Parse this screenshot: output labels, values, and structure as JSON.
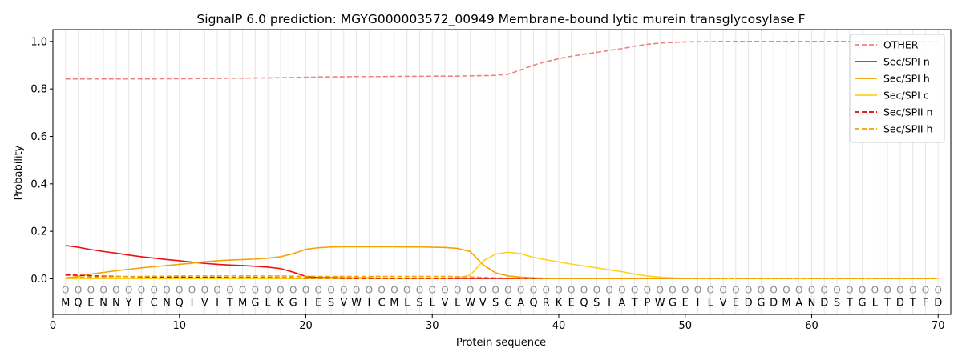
{
  "chart_data": {
    "type": "line",
    "title": "SignalP 6.0 prediction: MGYG000003572_00949 Membrane-bound lytic murein transglycosylase F",
    "xlabel": "Protein sequence",
    "ylabel": "Probability",
    "xlim": [
      0,
      71
    ],
    "ylim": [
      -0.15,
      1.05
    ],
    "xticks": [
      0,
      10,
      20,
      30,
      40,
      50,
      60,
      70
    ],
    "yticks": [
      0.0,
      0.2,
      0.4,
      0.6,
      0.8,
      1.0
    ],
    "xtick_labels": [
      "0",
      "10",
      "20",
      "30",
      "40",
      "50",
      "60",
      "70"
    ],
    "ytick_labels": [
      "0.0",
      "0.2",
      "0.4",
      "0.6",
      "0.8",
      "1.0"
    ],
    "legend_position": "top-right",
    "residues": [
      "M",
      "Q",
      "E",
      "N",
      "N",
      "Y",
      "F",
      "C",
      "N",
      "Q",
      "I",
      "V",
      "I",
      "T",
      "M",
      "G",
      "L",
      "K",
      "G",
      "I",
      "E",
      "S",
      "V",
      "W",
      "I",
      "C",
      "M",
      "L",
      "S",
      "L",
      "V",
      "L",
      "W",
      "V",
      "S",
      "C",
      "A",
      "Q",
      "R",
      "K",
      "E",
      "Q",
      "S",
      "I",
      "A",
      "T",
      "P",
      "W",
      "G",
      "E",
      "I",
      "L",
      "V",
      "E",
      "D",
      "G",
      "D",
      "M",
      "A",
      "N",
      "D",
      "S",
      "T",
      "G",
      "L",
      "T",
      "D",
      "T",
      "F",
      "D"
    ],
    "position_marker": "O",
    "x": [
      1,
      2,
      3,
      4,
      5,
      6,
      7,
      8,
      9,
      10,
      11,
      12,
      13,
      14,
      15,
      16,
      17,
      18,
      19,
      20,
      21,
      22,
      23,
      24,
      25,
      26,
      27,
      28,
      29,
      30,
      31,
      32,
      33,
      34,
      35,
      36,
      37,
      38,
      39,
      40,
      41,
      42,
      43,
      44,
      45,
      46,
      47,
      48,
      49,
      50,
      51,
      52,
      53,
      54,
      55,
      56,
      57,
      58,
      59,
      60,
      61,
      62,
      63,
      64,
      65,
      66,
      67,
      68,
      69,
      70
    ],
    "series": [
      {
        "name": "OTHER",
        "color": "#f08080",
        "dash": true,
        "values": [
          0.842,
          0.842,
          0.842,
          0.842,
          0.842,
          0.842,
          0.842,
          0.842,
          0.843,
          0.843,
          0.843,
          0.844,
          0.844,
          0.845,
          0.845,
          0.846,
          0.846,
          0.847,
          0.848,
          0.849,
          0.85,
          0.851,
          0.851,
          0.852,
          0.852,
          0.852,
          0.853,
          0.853,
          0.853,
          0.854,
          0.854,
          0.854,
          0.855,
          0.856,
          0.857,
          0.862,
          0.88,
          0.9,
          0.915,
          0.927,
          0.938,
          0.946,
          0.954,
          0.962,
          0.97,
          0.98,
          0.988,
          0.993,
          0.996,
          0.998,
          0.999,
          0.999,
          1.0,
          1.0,
          1.0,
          1.0,
          1.0,
          1.0,
          1.0,
          1.0,
          1.0,
          1.0,
          1.0,
          1.0,
          1.0,
          1.0,
          1.0,
          1.0,
          1.0,
          1.0
        ]
      },
      {
        "name": "Sec/SPI n",
        "color": "#ee1111",
        "dash": false,
        "values": [
          0.14,
          0.133,
          0.123,
          0.115,
          0.108,
          0.1,
          0.093,
          0.087,
          0.081,
          0.076,
          0.07,
          0.065,
          0.061,
          0.058,
          0.056,
          0.053,
          0.049,
          0.043,
          0.028,
          0.01,
          0.005,
          0.004,
          0.003,
          0.003,
          0.003,
          0.002,
          0.002,
          0.002,
          0.002,
          0.002,
          0.002,
          0.002,
          0.002,
          0.002,
          0.002,
          0.002,
          0.001,
          0.001,
          0.001,
          0.001,
          0.001,
          0.001,
          0.001,
          0.001,
          0.001,
          0.001,
          0.001,
          0.001,
          0.001,
          0.001,
          0.001,
          0.001,
          0.001,
          0.001,
          0.001,
          0.001,
          0.001,
          0.001,
          0.001,
          0.001,
          0.001,
          0.001,
          0.001,
          0.001,
          0.001,
          0.001,
          0.001,
          0.001,
          0.001,
          0.001
        ]
      },
      {
        "name": "Sec/SPI h",
        "color": "#f5a300",
        "dash": false,
        "values": [
          0.003,
          0.01,
          0.02,
          0.027,
          0.034,
          0.04,
          0.046,
          0.051,
          0.056,
          0.061,
          0.066,
          0.072,
          0.076,
          0.079,
          0.081,
          0.083,
          0.087,
          0.093,
          0.106,
          0.124,
          0.131,
          0.134,
          0.135,
          0.135,
          0.135,
          0.135,
          0.135,
          0.134,
          0.134,
          0.133,
          0.132,
          0.128,
          0.115,
          0.06,
          0.025,
          0.012,
          0.007,
          0.004,
          0.002,
          0.001,
          0.001,
          0.001,
          0.001,
          0.001,
          0.001,
          0.001,
          0.001,
          0.001,
          0.001,
          0.001,
          0.001,
          0.001,
          0.001,
          0.001,
          0.001,
          0.001,
          0.001,
          0.001,
          0.001,
          0.001,
          0.001,
          0.001,
          0.001,
          0.001,
          0.001,
          0.001,
          0.001,
          0.001,
          0.001,
          0.001
        ]
      },
      {
        "name": "Sec/SPI c",
        "color": "#ffd21f",
        "dash": false,
        "values": [
          0.001,
          0.001,
          0.001,
          0.001,
          0.001,
          0.001,
          0.001,
          0.001,
          0.001,
          0.001,
          0.001,
          0.001,
          0.001,
          0.001,
          0.001,
          0.001,
          0.001,
          0.001,
          0.001,
          0.001,
          0.001,
          0.001,
          0.001,
          0.001,
          0.001,
          0.001,
          0.001,
          0.001,
          0.001,
          0.001,
          0.002,
          0.004,
          0.015,
          0.075,
          0.104,
          0.112,
          0.106,
          0.09,
          0.08,
          0.071,
          0.062,
          0.054,
          0.046,
          0.038,
          0.03,
          0.02,
          0.012,
          0.007,
          0.004,
          0.002,
          0.001,
          0.001,
          0.001,
          0.001,
          0.001,
          0.001,
          0.001,
          0.001,
          0.001,
          0.001,
          0.001,
          0.001,
          0.001,
          0.001,
          0.001,
          0.001,
          0.001,
          0.001,
          0.001,
          0.001
        ]
      },
      {
        "name": "Sec/SPII n",
        "color": "#dd0000",
        "dash": true,
        "values": [
          0.016,
          0.015,
          0.013,
          0.011,
          0.01,
          0.009,
          0.008,
          0.008,
          0.007,
          0.007,
          0.006,
          0.006,
          0.006,
          0.005,
          0.005,
          0.005,
          0.005,
          0.004,
          0.004,
          0.003,
          0.003,
          0.003,
          0.002,
          0.002,
          0.002,
          0.002,
          0.002,
          0.002,
          0.002,
          0.002,
          0.002,
          0.002,
          0.002,
          0.002,
          0.002,
          0.001,
          0.001,
          0.001,
          0.001,
          0.001,
          0.001,
          0.001,
          0.001,
          0.001,
          0.001,
          0.001,
          0.001,
          0.001,
          0.001,
          0.001,
          0.001,
          0.001,
          0.001,
          0.001,
          0.001,
          0.001,
          0.001,
          0.001,
          0.001,
          0.001,
          0.001,
          0.001,
          0.001,
          0.001,
          0.001,
          0.001,
          0.001,
          0.001,
          0.001,
          0.001
        ]
      },
      {
        "name": "Sec/SPII h",
        "color": "#f5a300",
        "dash": true,
        "values": [
          0.002,
          0.005,
          0.007,
          0.008,
          0.009,
          0.01,
          0.01,
          0.011,
          0.011,
          0.012,
          0.012,
          0.012,
          0.012,
          0.012,
          0.012,
          0.012,
          0.012,
          0.012,
          0.011,
          0.011,
          0.01,
          0.01,
          0.01,
          0.01,
          0.01,
          0.01,
          0.01,
          0.01,
          0.01,
          0.01,
          0.01,
          0.009,
          0.008,
          0.006,
          0.004,
          0.003,
          0.002,
          0.002,
          0.001,
          0.001,
          0.001,
          0.001,
          0.001,
          0.001,
          0.001,
          0.001,
          0.001,
          0.001,
          0.001,
          0.001,
          0.001,
          0.001,
          0.001,
          0.001,
          0.001,
          0.001,
          0.001,
          0.001,
          0.001,
          0.001,
          0.001,
          0.001,
          0.001,
          0.001,
          0.001,
          0.001,
          0.001,
          0.001,
          0.001,
          0.001
        ]
      }
    ]
  }
}
